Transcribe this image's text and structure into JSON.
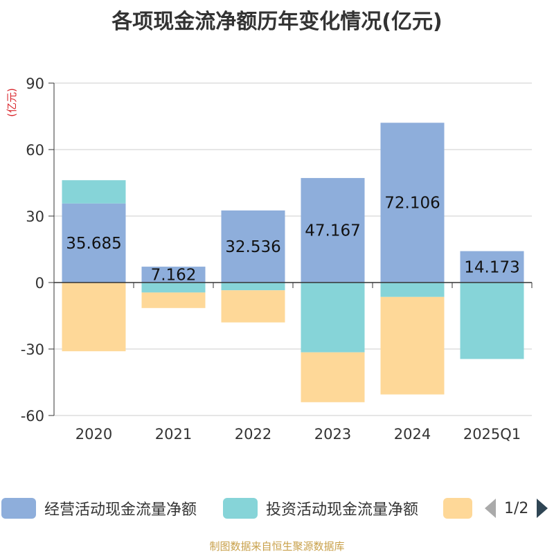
{
  "chart_data": {
    "type": "bar",
    "stacked": true,
    "title": "各项现金流净额历年变化情况(亿元)",
    "ylabel": "(亿元)",
    "ylim": [
      -60,
      90
    ],
    "yticks": [
      90,
      60,
      30,
      0,
      -30,
      -60
    ],
    "categories": [
      "2020",
      "2021",
      "2022",
      "2023",
      "2024",
      "2025Q1"
    ],
    "series": [
      {
        "name": "经营活动现金流量净额",
        "color": "#8eaedb",
        "values": [
          35.685,
          7.162,
          32.536,
          47.167,
          72.106,
          14.173
        ],
        "labels": [
          "35.685",
          "7.162",
          "32.536",
          "47.167",
          "72.106",
          "14.173"
        ]
      },
      {
        "name": "投资活动现金流量净额",
        "color": "#86d4d8",
        "values": [
          10.5,
          -4.5,
          -3.5,
          -31.5,
          -6.5,
          -34.5
        ]
      },
      {
        "name": "",
        "color": "#fed898",
        "values": [
          -31,
          -7,
          -14.5,
          -22.5,
          -44,
          0
        ]
      }
    ]
  },
  "legend": {
    "items": [
      {
        "label": "经营活动现金流量净额",
        "color": "#8eaedb"
      },
      {
        "label": "投资活动现金流量净额",
        "color": "#86d4d8"
      },
      {
        "label": "",
        "color": "#fed898"
      }
    ],
    "page": "1/2"
  },
  "source": "制图数据来自恒生聚源数据库"
}
